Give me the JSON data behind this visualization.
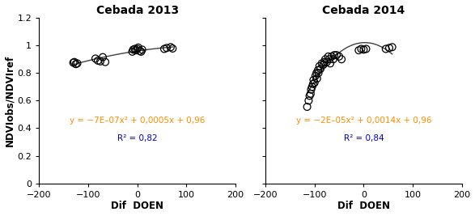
{
  "title1": "Cebada 2013",
  "title2": "Cebada 2014",
  "xlabel": "Dif  DOEN",
  "ylabel": "NDVIobs/NDVIref",
  "xlim": [
    -200,
    200
  ],
  "ylim": [
    0,
    1.2
  ],
  "yticks": [
    0,
    0.2,
    0.4,
    0.6,
    0.8,
    1.0,
    1.2
  ],
  "xticks": [
    -200,
    -100,
    0,
    100,
    200
  ],
  "eq1_line1": "y = −7E–07x² + 0,0005x + 0,96",
  "eq1_line2": "R² = 0,82",
  "eq2_line1": "y = −2E–05x² + 0,0014x + 0,96",
  "eq2_line2": "R² = 0,84",
  "scatter1_x": [
    -130,
    -128,
    -125,
    -122,
    -85,
    -80,
    -75,
    -70,
    -65,
    -10,
    -8,
    -5,
    -3,
    0,
    2,
    5,
    8,
    10,
    55,
    60,
    68,
    72
  ],
  "scatter1_y": [
    0.875,
    0.88,
    0.865,
    0.87,
    0.905,
    0.89,
    0.885,
    0.915,
    0.88,
    0.955,
    0.97,
    0.975,
    0.965,
    0.975,
    0.985,
    0.96,
    0.955,
    0.97,
    0.975,
    0.982,
    0.988,
    0.978
  ],
  "scatter2_x": [
    -115,
    -112,
    -110,
    -108,
    -107,
    -105,
    -103,
    -102,
    -100,
    -98,
    -96,
    -95,
    -93,
    -92,
    -90,
    -88,
    -85,
    -82,
    -80,
    -78,
    -75,
    -72,
    -70,
    -68,
    -65,
    -62,
    -60,
    -55,
    -50,
    -45,
    -10,
    -5,
    0,
    5,
    45,
    52,
    58
  ],
  "scatter2_y": [
    0.555,
    0.6,
    0.635,
    0.65,
    0.68,
    0.7,
    0.72,
    0.75,
    0.73,
    0.78,
    0.8,
    0.76,
    0.82,
    0.8,
    0.85,
    0.83,
    0.87,
    0.86,
    0.88,
    0.9,
    0.88,
    0.92,
    0.9,
    0.87,
    0.92,
    0.9,
    0.93,
    0.93,
    0.92,
    0.9,
    0.965,
    0.975,
    0.97,
    0.975,
    0.975,
    0.982,
    0.988
  ],
  "scatter_color": "#000000",
  "line_color": "#404040",
  "eq_color": "#FF8C00",
  "r2_color": "#0000CD",
  "title_fontsize": 10,
  "label_fontsize": 8.5,
  "tick_fontsize": 8,
  "eq_fontsize": 7.5
}
